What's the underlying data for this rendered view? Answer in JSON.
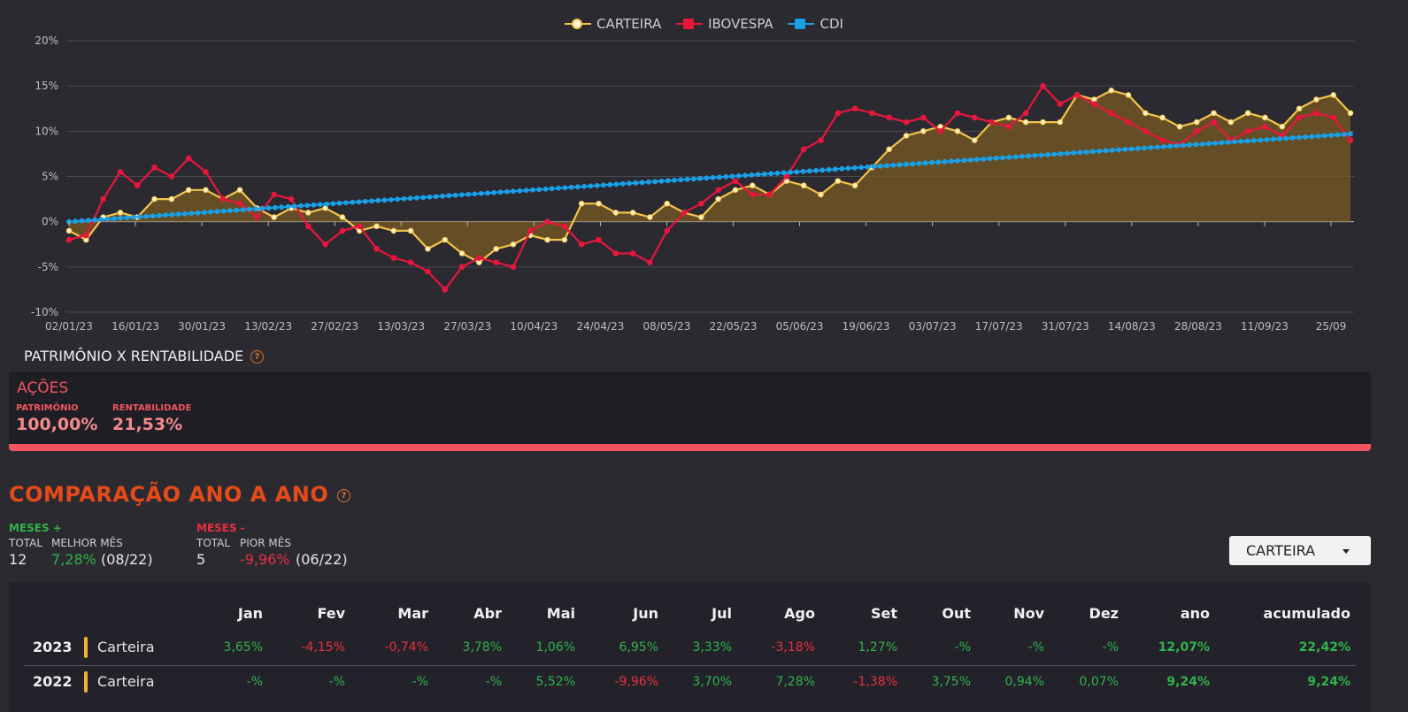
{
  "chart_data": {
    "type": "line",
    "legend": [
      "CARTEIRA",
      "IBOVESPA",
      "CDI"
    ],
    "legend_position": "top-center",
    "y_ticks": [
      "20%",
      "15%",
      "10%",
      "5%",
      "0%",
      "-5%",
      "-10%"
    ],
    "ylim": [
      -10,
      20
    ],
    "grid": true,
    "x_ticks": [
      "02/01/23",
      "16/01/23",
      "30/01/23",
      "13/02/23",
      "27/02/23",
      "13/03/23",
      "27/03/23",
      "10/04/23",
      "24/04/23",
      "08/05/23",
      "22/05/23",
      "05/06/23",
      "19/06/23",
      "03/07/23",
      "17/07/23",
      "31/07/23",
      "14/08/23",
      "28/08/23",
      "11/09/23",
      "25/09"
    ],
    "series": [
      {
        "name": "CARTEIRA",
        "color": "#f5c44a",
        "marker_fill": "#fff2c8",
        "area": true,
        "values": [
          -1.0,
          -2.0,
          0.5,
          1.0,
          0.5,
          2.5,
          2.5,
          3.5,
          3.5,
          2.5,
          3.5,
          1.5,
          0.5,
          1.5,
          1.0,
          1.5,
          0.5,
          -1.0,
          -0.5,
          -1.0,
          -1.0,
          -3.0,
          -2.0,
          -3.5,
          -4.5,
          -3.0,
          -2.5,
          -1.5,
          -2.0,
          -2.0,
          2.0,
          2.0,
          1.0,
          1.0,
          0.5,
          2.0,
          1.0,
          0.5,
          2.5,
          3.5,
          4.0,
          3.0,
          4.5,
          4.0,
          3.0,
          4.5,
          4.0,
          6.0,
          8.0,
          9.5,
          10.0,
          10.5,
          10.0,
          9.0,
          11.0,
          11.5,
          11.0,
          11.0,
          11.0,
          14.0,
          13.5,
          14.5,
          14.0,
          12.0,
          11.5,
          10.5,
          11.0,
          12.0,
          11.0,
          12.0,
          11.5,
          10.5,
          12.5,
          13.5,
          14.0,
          12.0
        ]
      },
      {
        "name": "IBOVESPA",
        "color": "#e8163c",
        "marker_fill": "#e8163c",
        "area": false,
        "values": [
          -2.0,
          -1.5,
          2.5,
          5.5,
          4.0,
          6.0,
          5.0,
          7.0,
          5.5,
          2.5,
          2.0,
          0.5,
          3.0,
          2.5,
          -0.5,
          -2.5,
          -1.0,
          -0.5,
          -3.0,
          -4.0,
          -4.5,
          -5.5,
          -7.5,
          -5.0,
          -4.0,
          -4.5,
          -5.0,
          -1.0,
          0.0,
          -0.5,
          -2.5,
          -2.0,
          -3.5,
          -3.5,
          -4.5,
          -1.0,
          1.0,
          2.0,
          3.5,
          4.5,
          3.0,
          3.0,
          5.0,
          8.0,
          9.0,
          12.0,
          12.5,
          12.0,
          11.5,
          11.0,
          11.5,
          10.0,
          12.0,
          11.5,
          11.0,
          10.5,
          12.0,
          15.0,
          13.0,
          14.0,
          13.0,
          12.0,
          11.0,
          10.0,
          9.0,
          8.5,
          10.0,
          11.0,
          9.0,
          10.0,
          10.5,
          9.5,
          11.5,
          12.0,
          11.5,
          9.0
        ]
      },
      {
        "name": "CDI",
        "color": "#1aa0e6",
        "marker_fill": "#1aa0e6",
        "area": false,
        "linear": true,
        "values": [
          0.0,
          9.7
        ]
      }
    ]
  },
  "patrimonio": {
    "title": "PATRIMÔNIO X RENTABILIDADE",
    "category": "AÇÕES",
    "patrimonio_label": "PATRIMÔNIO",
    "patrimonio_value": "100,00%",
    "rentabilidade_label": "RENTABILIDADE",
    "rentabilidade_value": "21,53%"
  },
  "comparacao": {
    "title": "COMPARAÇÃO ANO A ANO",
    "meses_pos": {
      "label": "MESES +",
      "total_label": "TOTAL",
      "total": "12",
      "best_label": "MELHOR MÊS",
      "best_value": "7,28%",
      "best_period": "(08/22)"
    },
    "meses_neg": {
      "label": "MESES -",
      "total_label": "TOTAL",
      "total": "5",
      "worst_label": "PIOR MÊS",
      "worst_value": "-9,96%",
      "worst_period": "(06/22)"
    },
    "dropdown_value": "CARTEIRA",
    "headers": [
      "Jan",
      "Fev",
      "Mar",
      "Abr",
      "Mai",
      "Jun",
      "Jul",
      "Ago",
      "Set",
      "Out",
      "Nov",
      "Dez",
      "ano",
      "acumulado"
    ],
    "rows": [
      {
        "year": "2023",
        "name": "Carteira",
        "values": [
          "3,65%",
          "-4,15%",
          "-0,74%",
          "3,78%",
          "1,06%",
          "6,95%",
          "3,33%",
          "-3,18%",
          "1,27%",
          "-%",
          "-%",
          "-%",
          "12,07%",
          "22,42%"
        ]
      },
      {
        "year": "2022",
        "name": "Carteira",
        "values": [
          "-%",
          "-%",
          "-%",
          "-%",
          "5,52%",
          "-9,96%",
          "3,70%",
          "7,28%",
          "-1,38%",
          "3,75%",
          "0,94%",
          "0,07%",
          "9,24%",
          "9,24%"
        ]
      }
    ]
  }
}
